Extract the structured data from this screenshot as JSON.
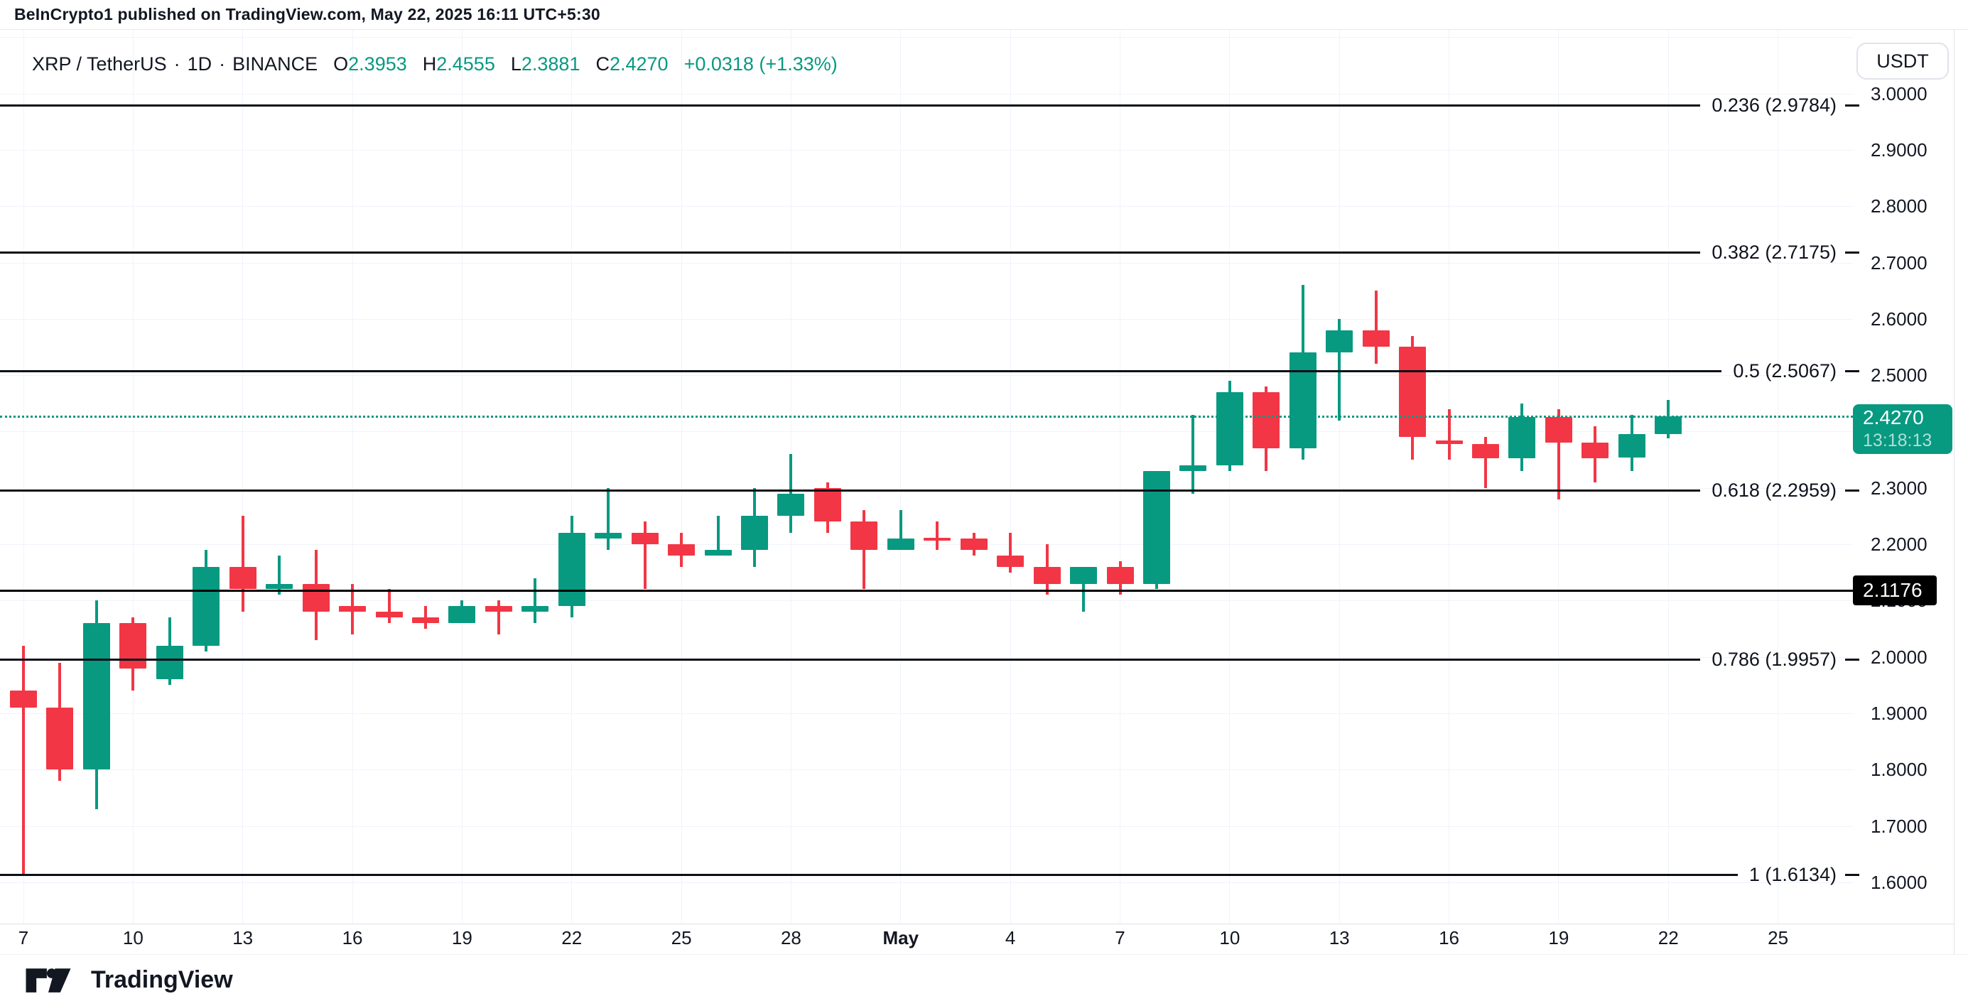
{
  "attribution": {
    "text": "BeInCrypto1 published on TradingView.com, May 22, 2025 16:11 UTC+5:30"
  },
  "legend": {
    "symbol": "XRP / TetherUS",
    "sep": "·",
    "interval": "1D",
    "exchange": "BINANCE",
    "ohlc": [
      {
        "label": "O",
        "value": "2.3953"
      },
      {
        "label": "H",
        "value": "2.4555"
      },
      {
        "label": "L",
        "value": "2.3881"
      },
      {
        "label": "C",
        "value": "2.4270"
      }
    ],
    "change": "+0.0318 (+1.33%)"
  },
  "currency_button": {
    "label": "USDT"
  },
  "logo": {
    "text": "TradingView"
  },
  "colors": {
    "up": "#089981",
    "down": "#F23645",
    "accent": "#089981",
    "price_line": "#000000",
    "text": "#131722",
    "grid": "#F0F3FA"
  },
  "price_axis": {
    "ticks": [
      {
        "label": "3.0000",
        "value": 3.0
      },
      {
        "label": "2.9000",
        "value": 2.9
      },
      {
        "label": "2.8000",
        "value": 2.8
      },
      {
        "label": "2.7000",
        "value": 2.7
      },
      {
        "label": "2.6000",
        "value": 2.6
      },
      {
        "label": "2.5000",
        "value": 2.5
      },
      {
        "label": "2.4000",
        "value": 2.4
      },
      {
        "label": "2.3000",
        "value": 2.3
      },
      {
        "label": "2.2000",
        "value": 2.2
      },
      {
        "label": "2.1000",
        "value": 2.1
      },
      {
        "label": "2.0000",
        "value": 2.0
      },
      {
        "label": "1.9000",
        "value": 1.9
      },
      {
        "label": "1.8000",
        "value": 1.8
      },
      {
        "label": "1.7000",
        "value": 1.7
      },
      {
        "label": "1.6000",
        "value": 1.6
      }
    ],
    "current_price_badge": {
      "price": "2.4270",
      "countdown": "13:18:13"
    },
    "price_line_badge": {
      "price": "2.1176"
    }
  },
  "current_price": {
    "value": 2.427
  },
  "price_line": {
    "value": 2.1176
  },
  "fib_levels": [
    {
      "ratio": "0.236",
      "price_label": "2.9784",
      "value": 2.9784
    },
    {
      "ratio": "0.382",
      "price_label": "2.7175",
      "value": 2.7175
    },
    {
      "ratio": "0.5",
      "price_label": "2.5067",
      "value": 2.5067
    },
    {
      "ratio": "0.618",
      "price_label": "2.2959",
      "value": 2.2959
    },
    {
      "ratio": "0.786",
      "price_label": "1.9957",
      "value": 1.9957
    },
    {
      "ratio": "1",
      "price_label": "1.6134",
      "value": 1.6134
    }
  ],
  "time_axis": {
    "labels": [
      {
        "i": 0,
        "text": "7"
      },
      {
        "i": 3,
        "text": "10"
      },
      {
        "i": 6,
        "text": "13"
      },
      {
        "i": 9,
        "text": "16"
      },
      {
        "i": 12,
        "text": "19"
      },
      {
        "i": 15,
        "text": "22"
      },
      {
        "i": 18,
        "text": "25"
      },
      {
        "i": 21,
        "text": "28"
      },
      {
        "i": 24,
        "text": "May",
        "bold": true
      },
      {
        "i": 27,
        "text": "4"
      },
      {
        "i": 30,
        "text": "7"
      },
      {
        "i": 33,
        "text": "10"
      },
      {
        "i": 36,
        "text": "13"
      },
      {
        "i": 39,
        "text": "16"
      },
      {
        "i": 42,
        "text": "19"
      },
      {
        "i": 45,
        "text": "22"
      },
      {
        "i": 48,
        "text": "25"
      }
    ]
  },
  "chart_data": {
    "type": "candlestick",
    "title": "XRP / TetherUS · 1D · BINANCE",
    "symbol": "XRP/USDT",
    "interval": "1D",
    "exchange": "BINANCE",
    "ylabel": "Price (USDT)",
    "ylim": [
      1.53,
      3.1
    ],
    "grid": true,
    "candles": [
      {
        "date": "Apr 7",
        "o": 1.94,
        "h": 2.02,
        "l": 1.613,
        "c": 1.91
      },
      {
        "date": "Apr 8",
        "o": 1.91,
        "h": 1.99,
        "l": 1.78,
        "c": 1.8
      },
      {
        "date": "Apr 9",
        "o": 1.8,
        "h": 2.1,
        "l": 1.73,
        "c": 2.06
      },
      {
        "date": "Apr 10",
        "o": 2.06,
        "h": 2.07,
        "l": 1.94,
        "c": 1.98
      },
      {
        "date": "Apr 11",
        "o": 1.96,
        "h": 2.07,
        "l": 1.95,
        "c": 2.02
      },
      {
        "date": "Apr 12",
        "o": 2.02,
        "h": 2.19,
        "l": 2.01,
        "c": 2.16
      },
      {
        "date": "Apr 13",
        "o": 2.16,
        "h": 2.25,
        "l": 2.08,
        "c": 2.12
      },
      {
        "date": "Apr 14",
        "o": 2.12,
        "h": 2.18,
        "l": 2.11,
        "c": 2.13
      },
      {
        "date": "Apr 15",
        "o": 2.13,
        "h": 2.19,
        "l": 2.03,
        "c": 2.08
      },
      {
        "date": "Apr 16",
        "o": 2.09,
        "h": 2.13,
        "l": 2.04,
        "c": 2.08
      },
      {
        "date": "Apr 17",
        "o": 2.08,
        "h": 2.12,
        "l": 2.06,
        "c": 2.07
      },
      {
        "date": "Apr 18",
        "o": 2.07,
        "h": 2.09,
        "l": 2.05,
        "c": 2.06
      },
      {
        "date": "Apr 19",
        "o": 2.06,
        "h": 2.1,
        "l": 2.06,
        "c": 2.09
      },
      {
        "date": "Apr 20",
        "o": 2.09,
        "h": 2.1,
        "l": 2.04,
        "c": 2.08
      },
      {
        "date": "Apr 21",
        "o": 2.08,
        "h": 2.14,
        "l": 2.06,
        "c": 2.09
      },
      {
        "date": "Apr 22",
        "o": 2.09,
        "h": 2.25,
        "l": 2.07,
        "c": 2.22
      },
      {
        "date": "Apr 23",
        "o": 2.21,
        "h": 2.3,
        "l": 2.19,
        "c": 2.22
      },
      {
        "date": "Apr 24",
        "o": 2.22,
        "h": 2.24,
        "l": 2.12,
        "c": 2.2
      },
      {
        "date": "Apr 25",
        "o": 2.2,
        "h": 2.22,
        "l": 2.16,
        "c": 2.18
      },
      {
        "date": "Apr 26",
        "o": 2.18,
        "h": 2.25,
        "l": 2.18,
        "c": 2.19
      },
      {
        "date": "Apr 27",
        "o": 2.19,
        "h": 2.3,
        "l": 2.16,
        "c": 2.25
      },
      {
        "date": "Apr 28",
        "o": 2.25,
        "h": 2.36,
        "l": 2.22,
        "c": 2.29
      },
      {
        "date": "Apr 29",
        "o": 2.3,
        "h": 2.31,
        "l": 2.22,
        "c": 2.24
      },
      {
        "date": "Apr 30",
        "o": 2.24,
        "h": 2.26,
        "l": 2.12,
        "c": 2.19
      },
      {
        "date": "May 1",
        "o": 2.19,
        "h": 2.26,
        "l": 2.19,
        "c": 2.21
      },
      {
        "date": "May 2",
        "o": 2.212,
        "h": 2.24,
        "l": 2.19,
        "c": 2.208
      },
      {
        "date": "May 3",
        "o": 2.21,
        "h": 2.22,
        "l": 2.18,
        "c": 2.19
      },
      {
        "date": "May 4",
        "o": 2.18,
        "h": 2.22,
        "l": 2.15,
        "c": 2.16
      },
      {
        "date": "May 5",
        "o": 2.16,
        "h": 2.2,
        "l": 2.11,
        "c": 2.13
      },
      {
        "date": "May 6",
        "o": 2.13,
        "h": 2.16,
        "l": 2.08,
        "c": 2.16
      },
      {
        "date": "May 7",
        "o": 2.16,
        "h": 2.17,
        "l": 2.11,
        "c": 2.13
      },
      {
        "date": "May 8",
        "o": 2.13,
        "h": 2.33,
        "l": 2.12,
        "c": 2.33
      },
      {
        "date": "May 9",
        "o": 2.33,
        "h": 2.43,
        "l": 2.29,
        "c": 2.34
      },
      {
        "date": "May 10",
        "o": 2.34,
        "h": 2.49,
        "l": 2.33,
        "c": 2.47
      },
      {
        "date": "May 11",
        "o": 2.47,
        "h": 2.48,
        "l": 2.33,
        "c": 2.37
      },
      {
        "date": "May 12",
        "o": 2.37,
        "h": 2.66,
        "l": 2.35,
        "c": 2.54
      },
      {
        "date": "May 13",
        "o": 2.54,
        "h": 2.6,
        "l": 2.42,
        "c": 2.58
      },
      {
        "date": "May 14",
        "o": 2.58,
        "h": 2.65,
        "l": 2.52,
        "c": 2.55
      },
      {
        "date": "May 15",
        "o": 2.55,
        "h": 2.57,
        "l": 2.35,
        "c": 2.39
      },
      {
        "date": "May 16",
        "o": 2.384,
        "h": 2.44,
        "l": 2.35,
        "c": 2.378
      },
      {
        "date": "May 17",
        "o": 2.378,
        "h": 2.39,
        "l": 2.3,
        "c": 2.353
      },
      {
        "date": "May 18",
        "o": 2.353,
        "h": 2.45,
        "l": 2.33,
        "c": 2.426
      },
      {
        "date": "May 19",
        "o": 2.426,
        "h": 2.44,
        "l": 2.28,
        "c": 2.381
      },
      {
        "date": "May 20",
        "o": 2.38,
        "h": 2.41,
        "l": 2.31,
        "c": 2.353
      },
      {
        "date": "May 21",
        "o": 2.354,
        "h": 2.43,
        "l": 2.33,
        "c": 2.395
      },
      {
        "date": "May 22",
        "o": 2.3953,
        "h": 2.4555,
        "l": 2.3881,
        "c": 2.427
      }
    ]
  }
}
